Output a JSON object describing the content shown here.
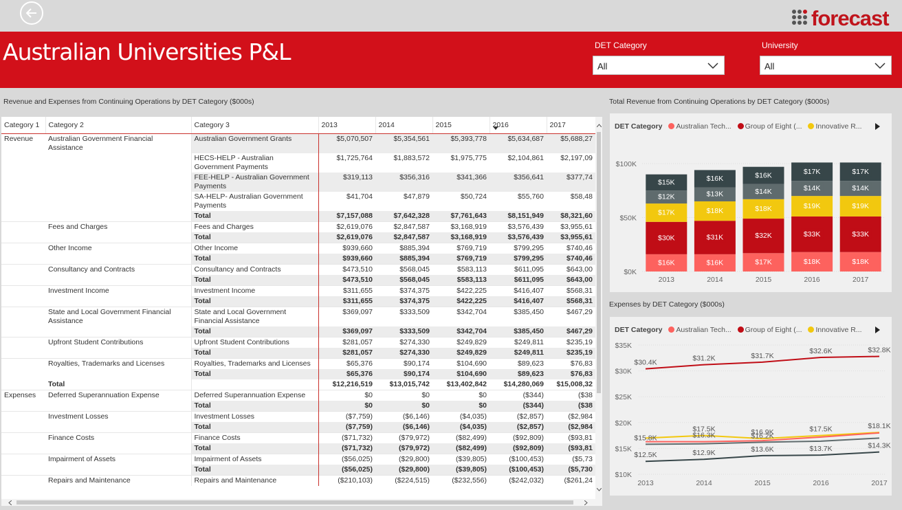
{
  "header": {
    "title": "Australian Universities P&L",
    "logo_text": "forecast"
  },
  "filters": [
    {
      "label": "DET Category",
      "value": "All"
    },
    {
      "label": "University",
      "value": "All"
    }
  ],
  "table": {
    "title": "Revenue and Expenses from Continuing Operations by DET Category ($000s)",
    "columns": [
      "Category 1",
      "Category 2",
      "Category 3",
      "2013",
      "2014",
      "2015",
      "2016",
      "2017"
    ],
    "rows": [
      {
        "c1": "Revenue",
        "c2": "Australian Government Financial Assistance",
        "c3": "Australian Government Grants",
        "v": [
          "$5,070,507",
          "$5,354,561",
          "$5,393,778",
          "$5,634,687",
          "$5,688,27"
        ],
        "t": 0,
        "s": 1
      },
      {
        "c1": "",
        "c2": "",
        "c3": "HECS-HELP - Australian Government Payments",
        "v": [
          "$1,725,764",
          "$1,883,572",
          "$1,975,775",
          "$2,104,861",
          "$2,197,09"
        ],
        "t": 0,
        "s": 0
      },
      {
        "c1": "",
        "c2": "",
        "c3": "FEE-HELP - Australian Government Payments",
        "v": [
          "$319,113",
          "$356,316",
          "$341,366",
          "$356,641",
          "$377,74"
        ],
        "t": 0,
        "s": 1
      },
      {
        "c1": "",
        "c2": "",
        "c3": "SA-HELP- Australian Government Payments",
        "v": [
          "$41,704",
          "$47,879",
          "$50,724",
          "$55,760",
          "$58,48"
        ],
        "t": 0,
        "s": 0
      },
      {
        "c1": "",
        "c2": "",
        "c3": "Total",
        "v": [
          "$7,157,088",
          "$7,642,328",
          "$7,761,643",
          "$8,151,949",
          "$8,321,60"
        ],
        "t": 1,
        "s": 1
      },
      {
        "c1": "",
        "c2": "Fees and Charges",
        "c3": "Fees and Charges",
        "v": [
          "$2,619,076",
          "$2,847,587",
          "$3,168,919",
          "$3,576,439",
          "$3,955,61"
        ],
        "t": 0,
        "s": 0
      },
      {
        "c1": "",
        "c2": "",
        "c3": "Total",
        "v": [
          "$2,619,076",
          "$2,847,587",
          "$3,168,919",
          "$3,576,439",
          "$3,955,61"
        ],
        "t": 1,
        "s": 1
      },
      {
        "c1": "",
        "c2": "Other Income",
        "c3": "Other Income",
        "v": [
          "$939,660",
          "$885,394",
          "$769,719",
          "$799,295",
          "$740,46"
        ],
        "t": 0,
        "s": 0
      },
      {
        "c1": "",
        "c2": "",
        "c3": "Total",
        "v": [
          "$939,660",
          "$885,394",
          "$769,719",
          "$799,295",
          "$740,46"
        ],
        "t": 1,
        "s": 1
      },
      {
        "c1": "",
        "c2": "Consultancy and Contracts",
        "c3": "Consultancy and Contracts",
        "v": [
          "$473,510",
          "$568,045",
          "$583,113",
          "$611,095",
          "$643,00"
        ],
        "t": 0,
        "s": 0
      },
      {
        "c1": "",
        "c2": "",
        "c3": "Total",
        "v": [
          "$473,510",
          "$568,045",
          "$583,113",
          "$611,095",
          "$643,00"
        ],
        "t": 1,
        "s": 1
      },
      {
        "c1": "",
        "c2": "Investment Income",
        "c3": "Investment Income",
        "v": [
          "$311,655",
          "$374,375",
          "$422,225",
          "$416,407",
          "$568,31"
        ],
        "t": 0,
        "s": 0
      },
      {
        "c1": "",
        "c2": "",
        "c3": "Total",
        "v": [
          "$311,655",
          "$374,375",
          "$422,225",
          "$416,407",
          "$568,31"
        ],
        "t": 1,
        "s": 1
      },
      {
        "c1": "",
        "c2": "State and Local Government Financial Assistance",
        "c3": "State and Local Government Financial Assistance",
        "v": [
          "$369,097",
          "$333,509",
          "$342,704",
          "$385,450",
          "$467,29"
        ],
        "t": 0,
        "s": 0
      },
      {
        "c1": "",
        "c2": "",
        "c3": "Total",
        "v": [
          "$369,097",
          "$333,509",
          "$342,704",
          "$385,450",
          "$467,29"
        ],
        "t": 1,
        "s": 1
      },
      {
        "c1": "",
        "c2": "Upfront Student Contributions",
        "c3": "Upfront Student Contributions",
        "v": [
          "$281,057",
          "$274,330",
          "$249,829",
          "$249,811",
          "$235,19"
        ],
        "t": 0,
        "s": 0
      },
      {
        "c1": "",
        "c2": "",
        "c3": "Total",
        "v": [
          "$281,057",
          "$274,330",
          "$249,829",
          "$249,811",
          "$235,19"
        ],
        "t": 1,
        "s": 1
      },
      {
        "c1": "",
        "c2": "Royalties, Trademarks and Licenses",
        "c3": "Royalties, Trademarks and Licenses",
        "v": [
          "$65,376",
          "$90,174",
          "$104,690",
          "$89,623",
          "$76,83"
        ],
        "t": 0,
        "s": 0
      },
      {
        "c1": "",
        "c2": "",
        "c3": "Total",
        "v": [
          "$65,376",
          "$90,174",
          "$104,690",
          "$89,623",
          "$76,83"
        ],
        "t": 1,
        "s": 1
      },
      {
        "c1": "",
        "c2": "Total",
        "c3": "",
        "v": [
          "$12,216,519",
          "$13,015,742",
          "$13,402,842",
          "$14,280,069",
          "$15,008,32"
        ],
        "t": 1,
        "s": 0
      },
      {
        "c1": "Expenses",
        "c2": "Deferred Superannuation Expense",
        "c3": "Deferred Superannuation Expense",
        "v": [
          "$0",
          "$0",
          "$0",
          "($344)",
          "($38"
        ],
        "t": 0,
        "s": 0
      },
      {
        "c1": "",
        "c2": "",
        "c3": "Total",
        "v": [
          "$0",
          "$0",
          "$0",
          "($344)",
          "($38"
        ],
        "t": 1,
        "s": 1
      },
      {
        "c1": "",
        "c2": "Investment Losses",
        "c3": "Investment Losses",
        "v": [
          "($7,759)",
          "($6,146)",
          "($4,035)",
          "($2,857)",
          "($2,984"
        ],
        "t": 0,
        "s": 0
      },
      {
        "c1": "",
        "c2": "",
        "c3": "Total",
        "v": [
          "($7,759)",
          "($6,146)",
          "($4,035)",
          "($2,857)",
          "($2,984"
        ],
        "t": 1,
        "s": 1
      },
      {
        "c1": "",
        "c2": "Finance Costs",
        "c3": "Finance Costs",
        "v": [
          "($71,732)",
          "($79,972)",
          "($82,499)",
          "($92,809)",
          "($93,81"
        ],
        "t": 0,
        "s": 0
      },
      {
        "c1": "",
        "c2": "",
        "c3": "Total",
        "v": [
          "($71,732)",
          "($79,972)",
          "($82,499)",
          "($92,809)",
          "($93,81"
        ],
        "t": 1,
        "s": 1
      },
      {
        "c1": "",
        "c2": "Impairment of Assets",
        "c3": "Impairment of Assets",
        "v": [
          "($56,025)",
          "($29,800)",
          "($39,805)",
          "($100,453)",
          "($5,73"
        ],
        "t": 0,
        "s": 0
      },
      {
        "c1": "",
        "c2": "",
        "c3": "Total",
        "v": [
          "($56,025)",
          "($29,800)",
          "($39,805)",
          "($100,453)",
          "($5,730"
        ],
        "t": 1,
        "s": 1
      },
      {
        "c1": "",
        "c2": "Repairs and Maintenance",
        "c3": "Repairs and Maintenance",
        "v": [
          "($210,103)",
          "($224,515)",
          "($232,556)",
          "($242,032)",
          "($261,24"
        ],
        "t": 0,
        "s": 0
      }
    ]
  },
  "revenue_card": {
    "title": "Total Revenue from Continuing Operations by DET Category ($000s)",
    "legend_title": "DET Category",
    "legend": [
      {
        "name": "Australian Tech...",
        "color": "#fd625e"
      },
      {
        "name": "Group of Eight (...",
        "color": "#c00d16"
      },
      {
        "name": "Innovative R...",
        "color": "#f2c80f"
      }
    ]
  },
  "expenses_card": {
    "title": "Expenses by DET Category ($000s)",
    "legend_title": "DET Category",
    "legend": [
      {
        "name": "Australian Tech...",
        "color": "#fd625e"
      },
      {
        "name": "Group of Eight (...",
        "color": "#c00d16"
      },
      {
        "name": "Innovative R...",
        "color": "#f2c80f"
      }
    ]
  },
  "chart_data": [
    {
      "type": "bar",
      "stacked": true,
      "title": "Total Revenue from Continuing Operations by DET Category ($000s)",
      "categories": [
        "2013",
        "2014",
        "2015",
        "2016",
        "2017"
      ],
      "y_ticks": [
        "$0K",
        "$50K",
        "$100K"
      ],
      "ylim": [
        0,
        100000
      ],
      "series": [
        {
          "color": "#fd625e",
          "values": [
            16000,
            16000,
            17000,
            18000,
            18000
          ],
          "labels": [
            "$16K",
            "$16K",
            "$17K",
            "$18K",
            "$18K"
          ]
        },
        {
          "color": "#c00d16",
          "values": [
            30000,
            31000,
            32000,
            33000,
            33000
          ],
          "labels": [
            "$30K",
            "$31K",
            "$32K",
            "$33K",
            "$33K"
          ]
        },
        {
          "color": "#f2c80f",
          "values": [
            17000,
            18000,
            18000,
            19000,
            19000
          ],
          "labels": [
            "$17K",
            "$18K",
            "$18K",
            "$19K",
            "$19K"
          ]
        },
        {
          "color": "#5f6b6d",
          "values": [
            12000,
            13000,
            14000,
            14000,
            14000
          ],
          "labels": [
            "$12K",
            "$13K",
            "$14K",
            "$14K",
            "$14K"
          ]
        },
        {
          "color": "#374649",
          "values": [
            15000,
            16000,
            16000,
            17000,
            17000
          ],
          "labels": [
            "$15K",
            "$16K",
            "$16K",
            "$17K",
            "$17K"
          ]
        }
      ]
    },
    {
      "type": "line",
      "title": "Expenses by DET Category ($000s)",
      "x": [
        "2013",
        "2014",
        "2015",
        "2016",
        "2017"
      ],
      "y_ticks": [
        "$10K",
        "$15K",
        "$20K",
        "$25K",
        "$30K",
        "$35K"
      ],
      "ylim": [
        10000,
        35000
      ],
      "series": [
        {
          "color": "#c00d16",
          "values": [
            30400,
            31200,
            31700,
            32600,
            32800
          ],
          "labels": [
            "$30.4K",
            "$31.2K",
            "$31.7K",
            "$32.6K",
            "$32.8K"
          ]
        },
        {
          "color": "#f2c80f",
          "values": [
            17000,
            17500,
            16900,
            17500,
            18100
          ],
          "labels": [
            "",
            "$17.5K",
            "$16.9K",
            "$17.5K",
            "$18.1K"
          ]
        },
        {
          "color": "#fd625e",
          "values": [
            16300,
            16300,
            16500,
            17200,
            18000
          ],
          "labels": [
            "",
            "$16.3K",
            "",
            "",
            ""
          ]
        },
        {
          "color": "#5f6b6d",
          "values": [
            15800,
            15900,
            16200,
            16400,
            17000
          ],
          "labels": [
            "$15.8K",
            "",
            "$16.2K",
            "",
            ""
          ]
        },
        {
          "color": "#374649",
          "values": [
            12500,
            12900,
            13600,
            13700,
            14300
          ],
          "labels": [
            "$12.5K",
            "$12.9K",
            "$13.6K",
            "$13.7K",
            "$14.3K"
          ]
        }
      ]
    }
  ]
}
